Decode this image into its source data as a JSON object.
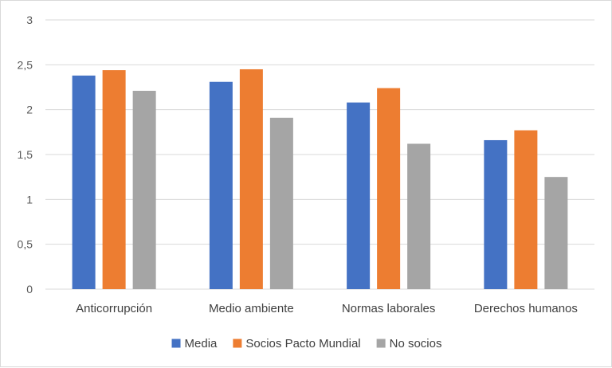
{
  "chart_data": {
    "type": "bar",
    "categories": [
      "Anticorrupción",
      "Medio ambiente",
      "Normas laborales",
      "Derechos humanos"
    ],
    "series": [
      {
        "name": "Media",
        "color": "#4472c4",
        "values": [
          2.38,
          2.31,
          2.08,
          1.66
        ]
      },
      {
        "name": "Socios Pacto Mundial",
        "color": "#ed7d31",
        "values": [
          2.44,
          2.45,
          2.24,
          1.77
        ]
      },
      {
        "name": "No socios",
        "color": "#a5a5a5",
        "values": [
          2.21,
          1.91,
          1.62,
          1.25
        ]
      }
    ],
    "ylim": [
      0,
      3
    ],
    "yticks": [
      "0",
      "0,5",
      "1",
      "1,5",
      "2",
      "2,5",
      "3"
    ],
    "ytick_values": [
      0,
      0.5,
      1,
      1.5,
      2,
      2.5,
      3
    ],
    "grid": true,
    "legend_position": "bottom",
    "title": "",
    "xlabel": "",
    "ylabel": ""
  }
}
